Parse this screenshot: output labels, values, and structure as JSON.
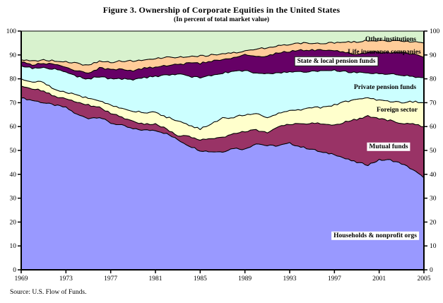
{
  "figure": {
    "title": "Figure 3. Ownership of Corporate Equities in the United States",
    "subtitle": "(In percent of total market value)",
    "source_note": "Source: U.S. Flow of Funds."
  },
  "chart_data": {
    "type": "area",
    "stacked": true,
    "units": "percent of total market value",
    "grid": false,
    "legend": "in-plot labels",
    "ylim": [
      0,
      100
    ],
    "y_ticks": [
      0,
      10,
      20,
      30,
      40,
      50,
      60,
      70,
      80,
      90,
      100
    ],
    "x_tick_labels": [
      "1969",
      "1973",
      "1977",
      "1981",
      "1985",
      "1989",
      "1993",
      "1997",
      "2001",
      "2005"
    ],
    "x": [
      1969,
      1970,
      1971,
      1972,
      1973,
      1974,
      1975,
      1976,
      1977,
      1978,
      1979,
      1980,
      1981,
      1982,
      1983,
      1984,
      1985,
      1986,
      1987,
      1988,
      1989,
      1990,
      1991,
      1992,
      1993,
      1994,
      1995,
      1996,
      1997,
      1998,
      1999,
      2000,
      2001,
      2002,
      2003,
      2004,
      2005
    ],
    "series": [
      {
        "name": "Households & nonprofit orgs",
        "color": "#9999FF",
        "values": [
          72,
          71,
          70,
          69,
          68,
          65,
          63.5,
          64,
          61.5,
          60.5,
          59,
          58.5,
          58.5,
          57,
          54.5,
          52,
          50,
          49.5,
          49.5,
          51,
          50.5,
          53,
          52,
          52,
          53,
          51.5,
          50.5,
          49,
          48.5,
          46.5,
          45,
          44,
          46,
          46,
          44.5,
          42,
          38.5
        ]
      },
      {
        "name": "Mutual funds",
        "color": "#993366",
        "values": [
          5,
          5,
          5,
          3.5,
          4,
          5,
          5.5,
          4,
          4,
          3.5,
          3,
          2.5,
          2.5,
          2,
          1.5,
          4,
          4.5,
          5.5,
          6,
          6,
          7.5,
          5.5,
          5.5,
          8,
          8,
          9.5,
          11,
          12,
          12,
          15.5,
          18,
          20.5,
          17.5,
          16.5,
          17,
          19,
          21.5
        ]
      },
      {
        "name": "Foreign sector",
        "color": "#FFFFCC",
        "values": [
          3,
          3,
          3.5,
          3,
          2.5,
          3,
          3,
          3,
          3.5,
          3.5,
          4.5,
          5,
          5,
          5,
          6.5,
          4.5,
          4.5,
          6,
          8,
          7,
          7,
          7,
          6.5,
          5.5,
          5.5,
          6,
          6.5,
          7,
          8.5,
          8.5,
          8.5,
          7.5,
          7.5,
          8,
          8.5,
          9.5,
          10
        ]
      },
      {
        "name": "Private pension funds",
        "color": "#CCFFFF",
        "values": [
          5.5,
          5.5,
          6,
          8.5,
          8.5,
          8,
          8,
          10,
          11,
          12.5,
          13,
          14.5,
          15,
          17.5,
          19.5,
          20.5,
          21.5,
          20.5,
          19,
          19,
          18.5,
          17,
          18,
          17,
          16.5,
          16,
          15,
          15.5,
          14.5,
          12.5,
          11,
          10.5,
          11,
          11.5,
          11.5,
          10.5,
          10.5
        ]
      },
      {
        "name": "State & local pension funds",
        "color": "#660066",
        "values": [
          1.5,
          1.5,
          2,
          2,
          1.5,
          2.5,
          2.5,
          3.5,
          4,
          4,
          4,
          4,
          4,
          4,
          4,
          5.5,
          6,
          6,
          5.5,
          6,
          6.5,
          7,
          7.5,
          8.5,
          8.5,
          9,
          9,
          8.5,
          8.5,
          8,
          8,
          8.5,
          9,
          9,
          9.5,
          9.5,
          8.5
        ]
      },
      {
        "name": "Life insurance companies",
        "color": "#FFCC99",
        "values": [
          1,
          1.5,
          1.5,
          1.5,
          2.5,
          3,
          3,
          3,
          3,
          3.5,
          4,
          3.5,
          3.5,
          3.5,
          3,
          3,
          3,
          2.5,
          2.5,
          2,
          1.5,
          3,
          3.5,
          3,
          3,
          3,
          3,
          3,
          3,
          4.5,
          5,
          5,
          5,
          5,
          5,
          5,
          6
        ]
      },
      {
        "name": "Other institutions",
        "color": "#D8F2CE",
        "values": [
          12,
          12.5,
          12,
          12.5,
          13,
          13.5,
          14.5,
          12.5,
          13,
          12.5,
          12.5,
          12,
          11.5,
          11,
          11,
          10.5,
          10.5,
          10,
          9.5,
          9,
          8.5,
          7.5,
          7,
          6,
          5.5,
          5,
          5,
          5,
          5,
          4.5,
          4.5,
          4,
          4,
          4,
          4,
          4.5,
          5
        ]
      }
    ]
  }
}
